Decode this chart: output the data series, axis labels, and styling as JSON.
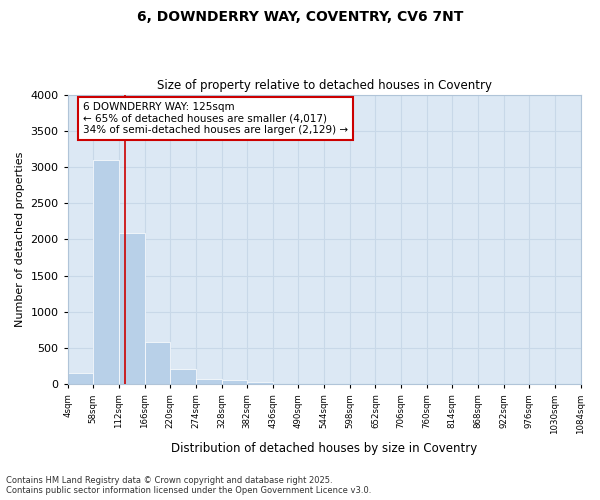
{
  "title1": "6, DOWNDERRY WAY, COVENTRY, CV6 7NT",
  "title2": "Size of property relative to detached houses in Coventry",
  "xlabel": "Distribution of detached houses by size in Coventry",
  "ylabel": "Number of detached properties",
  "footnote1": "Contains HM Land Registry data © Crown copyright and database right 2025.",
  "footnote2": "Contains public sector information licensed under the Open Government Licence v3.0.",
  "annotation_line1": "6 DOWNDERRY WAY: 125sqm",
  "annotation_line2": "← 65% of detached houses are smaller (4,017)",
  "annotation_line3": "34% of semi-detached houses are larger (2,129) →",
  "bar_edges": [
    4,
    58,
    112,
    166,
    220,
    274,
    328,
    382,
    436,
    490,
    544,
    598,
    652,
    706,
    760,
    814,
    868,
    922,
    976,
    1030,
    1084
  ],
  "bar_heights": [
    155,
    3090,
    2090,
    580,
    215,
    70,
    55,
    35,
    0,
    0,
    0,
    0,
    0,
    0,
    0,
    0,
    0,
    0,
    0,
    0
  ],
  "bar_color": "#b8d0e8",
  "redline_x": 125,
  "redline_color": "#cc0000",
  "ylim": [
    0,
    4000
  ],
  "xlim": [
    4,
    1084
  ],
  "annotation_box_color": "#cc0000",
  "grid_color": "#c8d8e8",
  "background_color": "#dce8f4",
  "yticks": [
    0,
    500,
    1000,
    1500,
    2000,
    2500,
    3000,
    3500,
    4000
  ],
  "tick_labels": [
    "4sqm",
    "58sqm",
    "112sqm",
    "166sqm",
    "220sqm",
    "274sqm",
    "328sqm",
    "382sqm",
    "436sqm",
    "490sqm",
    "544sqm",
    "598sqm",
    "652sqm",
    "706sqm",
    "760sqm",
    "814sqm",
    "868sqm",
    "922sqm",
    "976sqm",
    "1030sqm",
    "1084sqm"
  ]
}
